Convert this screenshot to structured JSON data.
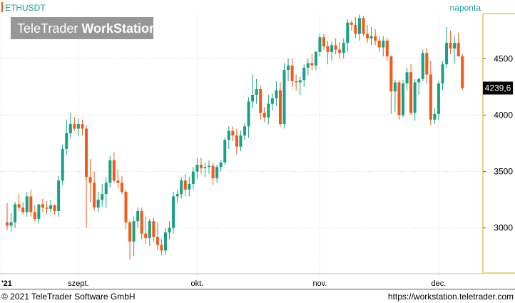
{
  "header": {
    "symbol": "ETHUSDT",
    "interval": "naponta"
  },
  "watermark": {
    "brand_regular": "TeleTrader ",
    "brand_bold": "WorkStation"
  },
  "footer": {
    "copyright": "© 2021  TeleTrader Software GmbH",
    "url": "https://workstation.teletrader.com"
  },
  "colors": {
    "up": "#19a085",
    "down": "#f05a1a",
    "price_axis_border": "#e6c25a",
    "grid": "#d8d8d8",
    "header_text": "#17a2a2"
  },
  "chart_data": {
    "type": "candlestick",
    "ylim": [
      2600,
      4900
    ],
    "yticks": [
      3000,
      3500,
      4000,
      4500
    ],
    "ytick_labels": [
      "3000",
      "3500",
      "4000",
      "4500"
    ],
    "xlabels": [
      {
        "label": "'21",
        "index": 0
      },
      {
        "label": "szept.",
        "index": 18
      },
      {
        "label": "okt.",
        "index": 48
      },
      {
        "label": "nov.",
        "index": 79
      },
      {
        "label": "dec.",
        "index": 109
      }
    ],
    "last_price": 4239.6,
    "last_price_label": "4239,6",
    "grid": true,
    "candles": [
      [
        3050,
        3220,
        2980,
        3020
      ],
      [
        3020,
        3130,
        2970,
        3050
      ],
      [
        3050,
        3230,
        3000,
        3210
      ],
      [
        3210,
        3300,
        3150,
        3180
      ],
      [
        3180,
        3230,
        3120,
        3140
      ],
      [
        3140,
        3320,
        3100,
        3280
      ],
      [
        3280,
        3340,
        3100,
        3140
      ],
      [
        3140,
        3200,
        3060,
        3080
      ],
      [
        3080,
        3200,
        3040,
        3210
      ],
      [
        3210,
        3260,
        3140,
        3180
      ],
      [
        3180,
        3240,
        3120,
        3170
      ],
      [
        3170,
        3250,
        3140,
        3200
      ],
      [
        3200,
        3210,
        3120,
        3150
      ],
      [
        3150,
        3460,
        3100,
        3420
      ],
      [
        3420,
        3740,
        3380,
        3700
      ],
      [
        3700,
        3960,
        3650,
        3840
      ],
      [
        3840,
        4020,
        3800,
        3920
      ],
      [
        3920,
        3980,
        3860,
        3880
      ],
      [
        3880,
        3970,
        3820,
        3920
      ],
      [
        3920,
        3960,
        3820,
        3880
      ],
      [
        3880,
        3910,
        3000,
        3450
      ],
      [
        3450,
        3610,
        3230,
        3400
      ],
      [
        3400,
        3500,
        3150,
        3180
      ],
      [
        3180,
        3320,
        3140,
        3250
      ],
      [
        3250,
        3390,
        3190,
        3300
      ],
      [
        3300,
        3450,
        3180,
        3400
      ],
      [
        3400,
        3640,
        3360,
        3600
      ],
      [
        3600,
        3670,
        3400,
        3420
      ],
      [
        3420,
        3520,
        3350,
        3400
      ],
      [
        3400,
        3460,
        3300,
        3320
      ],
      [
        3320,
        3340,
        2990,
        3050
      ],
      [
        3050,
        3060,
        2720,
        2880
      ],
      [
        2880,
        3100,
        2750,
        3060
      ],
      [
        3060,
        3180,
        3000,
        3150
      ],
      [
        3150,
        3180,
        2900,
        2950
      ],
      [
        2950,
        3100,
        2860,
        2910
      ],
      [
        2910,
        3080,
        2840,
        3060
      ],
      [
        3060,
        3090,
        2880,
        2920
      ],
      [
        2920,
        3050,
        2800,
        2850
      ],
      [
        2850,
        2900,
        2760,
        2800
      ],
      [
        2800,
        3000,
        2760,
        2960
      ],
      [
        2960,
        3060,
        2900,
        3000
      ],
      [
        3000,
        3320,
        2950,
        3280
      ],
      [
        3280,
        3340,
        3220,
        3300
      ],
      [
        3300,
        3450,
        3260,
        3420
      ],
      [
        3420,
        3480,
        3280,
        3340
      ],
      [
        3340,
        3450,
        3280,
        3390
      ],
      [
        3390,
        3540,
        3340,
        3500
      ],
      [
        3500,
        3620,
        3440,
        3560
      ],
      [
        3560,
        3620,
        3480,
        3530
      ],
      [
        3530,
        3580,
        3450,
        3540
      ],
      [
        3540,
        3600,
        3480,
        3550
      ],
      [
        3550,
        3580,
        3380,
        3440
      ],
      [
        3440,
        3560,
        3400,
        3540
      ],
      [
        3540,
        3600,
        3500,
        3580
      ],
      [
        3580,
        3800,
        3560,
        3780
      ],
      [
        3780,
        3900,
        3700,
        3860
      ],
      [
        3860,
        3900,
        3770,
        3820
      ],
      [
        3820,
        3880,
        3650,
        3720
      ],
      [
        3720,
        3860,
        3680,
        3820
      ],
      [
        3820,
        3930,
        3780,
        3900
      ],
      [
        3900,
        4160,
        3800,
        4120
      ],
      [
        4120,
        4360,
        4060,
        4180
      ],
      [
        4180,
        4320,
        4100,
        4230
      ],
      [
        4230,
        4260,
        3960,
        4020
      ],
      [
        4020,
        4070,
        3940,
        3980
      ],
      [
        3980,
        4180,
        3920,
        4100
      ],
      [
        4100,
        4190,
        4040,
        4150
      ],
      [
        4150,
        4300,
        4080,
        4220
      ],
      [
        4220,
        4290,
        3900,
        3920
      ],
      [
        3920,
        4460,
        3880,
        4400
      ],
      [
        4400,
        4500,
        4300,
        4440
      ],
      [
        4440,
        4500,
        4250,
        4300
      ],
      [
        4300,
        4360,
        4220,
        4290
      ],
      [
        4290,
        4340,
        4180,
        4310
      ],
      [
        4310,
        4450,
        4250,
        4420
      ],
      [
        4420,
        4500,
        4350,
        4460
      ],
      [
        4460,
        4540,
        4400,
        4440
      ],
      [
        4440,
        4570,
        4400,
        4560
      ],
      [
        4560,
        4720,
        4520,
        4690
      ],
      [
        4690,
        4720,
        4580,
        4610
      ],
      [
        4610,
        4660,
        4450,
        4560
      ],
      [
        4560,
        4650,
        4480,
        4620
      ],
      [
        4620,
        4680,
        4540,
        4580
      ],
      [
        4580,
        4650,
        4500,
        4550
      ],
      [
        4550,
        4680,
        4500,
        4640
      ],
      [
        4640,
        4850,
        4560,
        4820
      ],
      [
        4820,
        4840,
        4750,
        4800
      ],
      [
        4800,
        4870,
        4680,
        4720
      ],
      [
        4720,
        4890,
        4660,
        4860
      ],
      [
        4860,
        4880,
        4700,
        4720
      ],
      [
        4720,
        4800,
        4640,
        4680
      ],
      [
        4680,
        4780,
        4620,
        4700
      ],
      [
        4700,
        4760,
        4620,
        4660
      ],
      [
        4660,
        4700,
        4560,
        4600
      ],
      [
        4600,
        4700,
        4520,
        4660
      ],
      [
        4660,
        4680,
        4480,
        4520
      ],
      [
        4520,
        4530,
        4010,
        4210
      ],
      [
        4210,
        4310,
        4030,
        4290
      ],
      [
        4290,
        4310,
        3960,
        4000
      ],
      [
        4000,
        4310,
        3980,
        4280
      ],
      [
        4280,
        4420,
        4220,
        4380
      ],
      [
        4380,
        4450,
        4000,
        4020
      ],
      [
        4020,
        4320,
        3950,
        4290
      ],
      [
        4290,
        4330,
        4180,
        4320
      ],
      [
        4320,
        4580,
        4300,
        4550
      ],
      [
        4550,
        4590,
        4280,
        4360
      ],
      [
        4360,
        4480,
        3910,
        3960
      ],
      [
        3960,
        4060,
        3920,
        4010
      ],
      [
        4010,
        4300,
        3960,
        4280
      ],
      [
        4280,
        4480,
        4220,
        4450
      ],
      [
        4450,
        4780,
        4420,
        4640
      ],
      [
        4640,
        4750,
        4540,
        4590
      ],
      [
        4590,
        4700,
        4460,
        4640
      ],
      [
        4640,
        4730,
        4520,
        4520
      ],
      [
        4520,
        4540,
        4220,
        4240
      ]
    ]
  }
}
